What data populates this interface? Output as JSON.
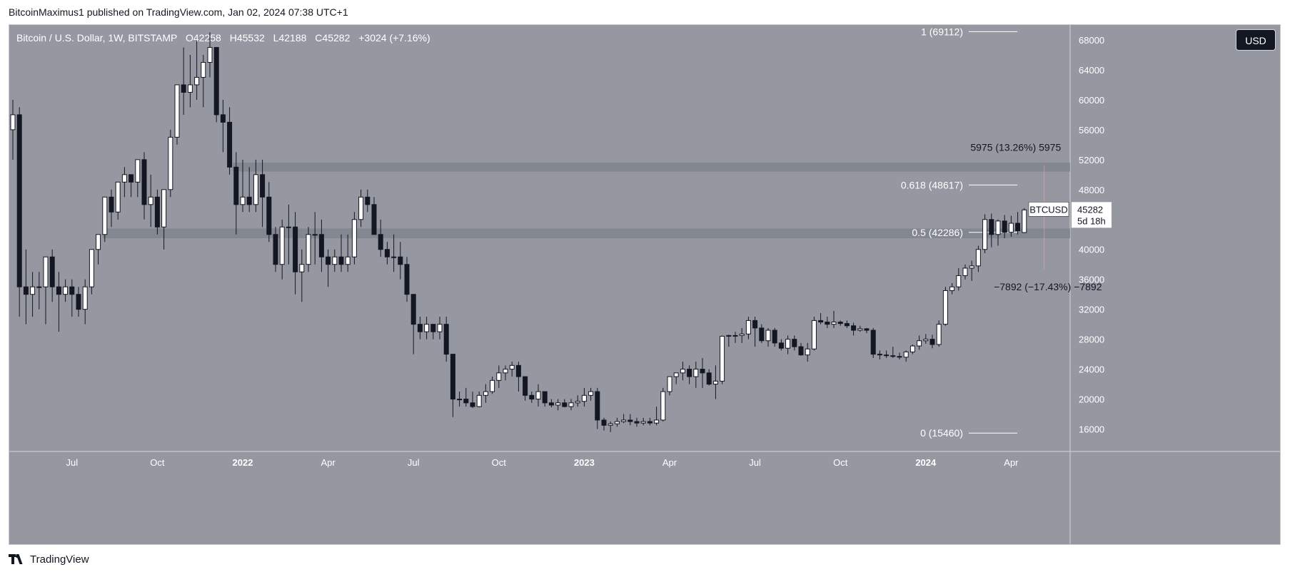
{
  "header": {
    "published": "BitcoinMaximus1 published on TradingView.com, Jan 02, 2024 07:38 UTC+1"
  },
  "legend": {
    "symbol": "Bitcoin / U.S. Dollar, 1W, BITSTAMP",
    "o_label": "O",
    "o": "42258",
    "h_label": "H",
    "h": "45532",
    "l_label": "L",
    "l": "42188",
    "c_label": "C",
    "c": "45282",
    "change": "+3024 (+7.16%)"
  },
  "currency_button": "USD",
  "footer": {
    "brand": "TradingView",
    "logo_icon": "tradingview-logo-icon"
  },
  "colors": {
    "background": "#9598a1",
    "up": "#ffffff",
    "down": "#131722",
    "zone": "#7e818a",
    "axis_text": "#ffffff"
  },
  "chart_data": {
    "type": "candlestick",
    "title": "Bitcoin / U.S. Dollar, 1W, BITSTAMP",
    "ylim": [
      13000,
      70000
    ],
    "y_ticks": [
      16000,
      20000,
      24000,
      28000,
      32000,
      36000,
      40000,
      44000,
      48000,
      52000,
      56000,
      60000,
      64000,
      68000
    ],
    "y_tick_labels": [
      "16000",
      "20000",
      "24000",
      "28000",
      "32000",
      "36000",
      "40000",
      "44000",
      "48000",
      "52000",
      "56000",
      "60000",
      "64000",
      "68000"
    ],
    "x_ticks": [
      {
        "label": "Jul",
        "week": 9,
        "bold": false
      },
      {
        "label": "Oct",
        "week": 22,
        "bold": false
      },
      {
        "label": "2022",
        "week": 35,
        "bold": true
      },
      {
        "label": "Apr",
        "week": 48,
        "bold": false
      },
      {
        "label": "Jul",
        "week": 61,
        "bold": false
      },
      {
        "label": "Oct",
        "week": 74,
        "bold": false
      },
      {
        "label": "2023",
        "week": 87,
        "bold": true
      },
      {
        "label": "Apr",
        "week": 100,
        "bold": false
      },
      {
        "label": "Jul",
        "week": 113,
        "bold": false
      },
      {
        "label": "Oct",
        "week": 126,
        "bold": false
      },
      {
        "label": "2024",
        "week": 139,
        "bold": true
      },
      {
        "label": "Apr",
        "week": 152,
        "bold": false
      }
    ],
    "candles": [
      [
        56000,
        60000,
        52000,
        58000
      ],
      [
        58000,
        59000,
        31000,
        35000
      ],
      [
        35000,
        40000,
        30000,
        34000
      ],
      [
        34000,
        37000,
        31000,
        35000
      ],
      [
        35000,
        37000,
        32000,
        35000
      ],
      [
        35000,
        39000,
        30000,
        39000
      ],
      [
        39000,
        40000,
        33000,
        35000
      ],
      [
        35000,
        37000,
        29000,
        34000
      ],
      [
        34000,
        36000,
        33000,
        35000
      ],
      [
        35000,
        36000,
        31000,
        34000
      ],
      [
        34000,
        35000,
        31000,
        32000
      ],
      [
        32000,
        36000,
        30000,
        35000
      ],
      [
        35000,
        40000,
        34000,
        40000
      ],
      [
        40000,
        42000,
        38000,
        42000
      ],
      [
        42000,
        47000,
        41000,
        47000
      ],
      [
        47000,
        48000,
        43000,
        45000
      ],
      [
        45000,
        49000,
        44000,
        49000
      ],
      [
        49000,
        51000,
        47000,
        50000
      ],
      [
        50000,
        50000,
        47000,
        49000
      ],
      [
        49000,
        52000,
        47000,
        52000
      ],
      [
        52000,
        53000,
        44000,
        46000
      ],
      [
        46000,
        50000,
        43000,
        47000
      ],
      [
        47000,
        48000,
        42000,
        43000
      ],
      [
        43000,
        48000,
        40000,
        48000
      ],
      [
        48000,
        56000,
        47000,
        55000
      ],
      [
        55000,
        62000,
        54000,
        62000
      ],
      [
        62000,
        67000,
        58000,
        61000
      ],
      [
        61000,
        66000,
        59000,
        62000
      ],
      [
        62000,
        68000,
        60000,
        63000
      ],
      [
        63000,
        66000,
        59000,
        65000
      ],
      [
        65000,
        69000,
        63000,
        67000
      ],
      [
        67000,
        67000,
        57000,
        58000
      ],
      [
        58000,
        60000,
        53000,
        57000
      ],
      [
        57000,
        59000,
        50000,
        51000
      ],
      [
        51000,
        53000,
        42000,
        46000
      ],
      [
        46000,
        52000,
        45000,
        47000
      ],
      [
        47000,
        51000,
        45000,
        46000
      ],
      [
        46000,
        52000,
        45000,
        50000
      ],
      [
        50000,
        52000,
        43000,
        47000
      ],
      [
        47000,
        49000,
        41000,
        42000
      ],
      [
        42000,
        43000,
        37000,
        38000
      ],
      [
        38000,
        44000,
        36000,
        43000
      ],
      [
        43000,
        46000,
        38000,
        43000
      ],
      [
        43000,
        45000,
        34000,
        37000
      ],
      [
        37000,
        40000,
        33000,
        38000
      ],
      [
        38000,
        43000,
        37000,
        42000
      ],
      [
        42000,
        45000,
        38000,
        42000
      ],
      [
        42000,
        44000,
        37000,
        39000
      ],
      [
        39000,
        40000,
        35000,
        38000
      ],
      [
        38000,
        40000,
        37000,
        39000
      ],
      [
        39000,
        42000,
        37000,
        38000
      ],
      [
        38000,
        42000,
        37000,
        39000
      ],
      [
        39000,
        45000,
        38000,
        44000
      ],
      [
        44000,
        48000,
        43000,
        47000
      ],
      [
        47000,
        48000,
        45000,
        46000
      ],
      [
        46000,
        47000,
        42000,
        42000
      ],
      [
        42000,
        44000,
        39000,
        40000
      ],
      [
        40000,
        41000,
        38000,
        39000
      ],
      [
        39000,
        42000,
        37000,
        39000
      ],
      [
        39000,
        41000,
        36000,
        38000
      ],
      [
        38000,
        39000,
        33000,
        34000
      ],
      [
        34000,
        34000,
        26000,
        30000
      ],
      [
        30000,
        31000,
        28000,
        29000
      ],
      [
        29000,
        31000,
        28000,
        30000
      ],
      [
        30000,
        30000,
        28000,
        29000
      ],
      [
        29000,
        31000,
        28000,
        30000
      ],
      [
        30000,
        31000,
        25000,
        26000
      ],
      [
        26000,
        26000,
        17600,
        20000
      ],
      [
        20000,
        21000,
        19000,
        20000
      ],
      [
        20000,
        21500,
        19000,
        19500
      ],
      [
        19500,
        21000,
        18800,
        19000
      ],
      [
        19000,
        21000,
        18900,
        20500
      ],
      [
        20500,
        22000,
        19500,
        21000
      ],
      [
        21000,
        23000,
        20700,
        22500
      ],
      [
        22500,
        24500,
        21500,
        23500
      ],
      [
        23500,
        24500,
        22500,
        24000
      ],
      [
        24000,
        25000,
        23000,
        24500
      ],
      [
        24500,
        25000,
        21000,
        23000
      ],
      [
        23000,
        23000,
        19800,
        20500
      ],
      [
        20500,
        21000,
        19500,
        20000
      ],
      [
        20000,
        22000,
        19000,
        21000
      ],
      [
        21000,
        21000,
        19000,
        19500
      ],
      [
        19500,
        20000,
        18900,
        19200
      ],
      [
        19200,
        20000,
        18500,
        19500
      ],
      [
        19500,
        20000,
        18900,
        19000
      ],
      [
        19000,
        20000,
        18500,
        19500
      ],
      [
        19500,
        20500,
        19000,
        19700
      ],
      [
        19700,
        21500,
        19000,
        20500
      ],
      [
        20500,
        21500,
        19800,
        21000
      ],
      [
        21000,
        21500,
        16000,
        17200
      ],
      [
        17200,
        17500,
        15800,
        16500
      ],
      [
        16500,
        17000,
        15600,
        16700
      ],
      [
        16700,
        17500,
        16300,
        17000
      ],
      [
        17000,
        18000,
        16800,
        17200
      ],
      [
        17200,
        18000,
        16500,
        17000
      ],
      [
        17000,
        17500,
        16300,
        16800
      ],
      [
        16800,
        17500,
        16500,
        17000
      ],
      [
        17000,
        17500,
        16500,
        16800
      ],
      [
        16800,
        19000,
        16500,
        17200
      ],
      [
        17200,
        21500,
        17000,
        21000
      ],
      [
        21000,
        23000,
        20500,
        23000
      ],
      [
        23000,
        23500,
        22000,
        23500
      ],
      [
        23500,
        25000,
        22500,
        24000
      ],
      [
        24000,
        24500,
        22000,
        23000
      ],
      [
        23000,
        25000,
        21500,
        24000
      ],
      [
        24000,
        25500,
        21500,
        23500
      ],
      [
        23500,
        24000,
        21800,
        22000
      ],
      [
        22000,
        24500,
        20000,
        22400
      ],
      [
        22400,
        28500,
        22000,
        28400
      ],
      [
        28400,
        28600,
        27000,
        28500
      ],
      [
        28500,
        29000,
        27500,
        28500
      ],
      [
        28500,
        29500,
        27500,
        28700
      ],
      [
        28700,
        31000,
        28000,
        30500
      ],
      [
        30500,
        31000,
        27000,
        29500
      ],
      [
        29500,
        30000,
        27500,
        27800
      ],
      [
        27800,
        29500,
        27000,
        29200
      ],
      [
        29200,
        29500,
        27000,
        27500
      ],
      [
        27500,
        28000,
        26500,
        26800
      ],
      [
        26800,
        28500,
        26000,
        28000
      ],
      [
        28000,
        28500,
        26500,
        27000
      ],
      [
        27000,
        27500,
        25800,
        25900
      ],
      [
        25900,
        27500,
        25000,
        26700
      ],
      [
        26700,
        31000,
        26500,
        30500
      ],
      [
        30500,
        31500,
        30000,
        30300
      ],
      [
        30300,
        31000,
        29500,
        30000
      ],
      [
        30000,
        31800,
        29500,
        30300
      ],
      [
        30300,
        30500,
        29800,
        30100
      ],
      [
        30100,
        30500,
        29500,
        29800
      ],
      [
        29800,
        30200,
        28500,
        29200
      ],
      [
        29200,
        29800,
        29000,
        29400
      ],
      [
        29400,
        29500,
        28800,
        29200
      ],
      [
        29200,
        29500,
        25500,
        26000
      ],
      [
        26000,
        26500,
        25300,
        25900
      ],
      [
        25900,
        26500,
        25500,
        25800
      ],
      [
        25800,
        27000,
        25500,
        25700
      ],
      [
        25700,
        26200,
        25300,
        25600
      ],
      [
        25600,
        26500,
        25000,
        26300
      ],
      [
        26300,
        27300,
        26000,
        27100
      ],
      [
        27100,
        28500,
        26600,
        27800
      ],
      [
        27800,
        28700,
        27400,
        28000
      ],
      [
        28000,
        28600,
        26800,
        27300
      ],
      [
        27300,
        30500,
        27000,
        30000
      ],
      [
        30000,
        35000,
        29800,
        34500
      ],
      [
        34500,
        35500,
        34000,
        35000
      ],
      [
        35000,
        37500,
        34500,
        36500
      ],
      [
        36500,
        38000,
        36000,
        37500
      ],
      [
        37500,
        38500,
        35800,
        37800
      ],
      [
        37800,
        40500,
        37000,
        40000
      ],
      [
        40000,
        44700,
        39500,
        44000
      ],
      [
        44000,
        44800,
        40300,
        42000
      ],
      [
        42000,
        44000,
        40500,
        43800
      ],
      [
        43800,
        44600,
        41500,
        42300
      ],
      [
        42300,
        44500,
        41700,
        43500
      ],
      [
        43500,
        45000,
        42000,
        42500
      ],
      [
        42258,
        45532,
        42188,
        45282
      ]
    ],
    "fib_levels": [
      {
        "label": "1 (69112)",
        "value": 69112
      },
      {
        "label": "0.618 (48617)",
        "value": 48617
      },
      {
        "label": "0.5 (42286)",
        "value": 42286
      },
      {
        "label": "0 (15460)",
        "value": 15460
      }
    ],
    "zones": [
      {
        "from": 50400,
        "to": 51600,
        "start_week": 33.5
      },
      {
        "from": 41500,
        "to": 42800,
        "start_week": 13.7
      }
    ],
    "measurements": [
      {
        "label": "5975 (13.26%) 5975",
        "from": 45282,
        "to": 51257
      },
      {
        "label": "−7892 (−17.43%) −7892",
        "from": 45282,
        "to": 37390
      }
    ],
    "price_tag": {
      "symbol": "BTCUSD",
      "price": "45282",
      "countdown": "5d 18h",
      "value": 45282
    }
  }
}
